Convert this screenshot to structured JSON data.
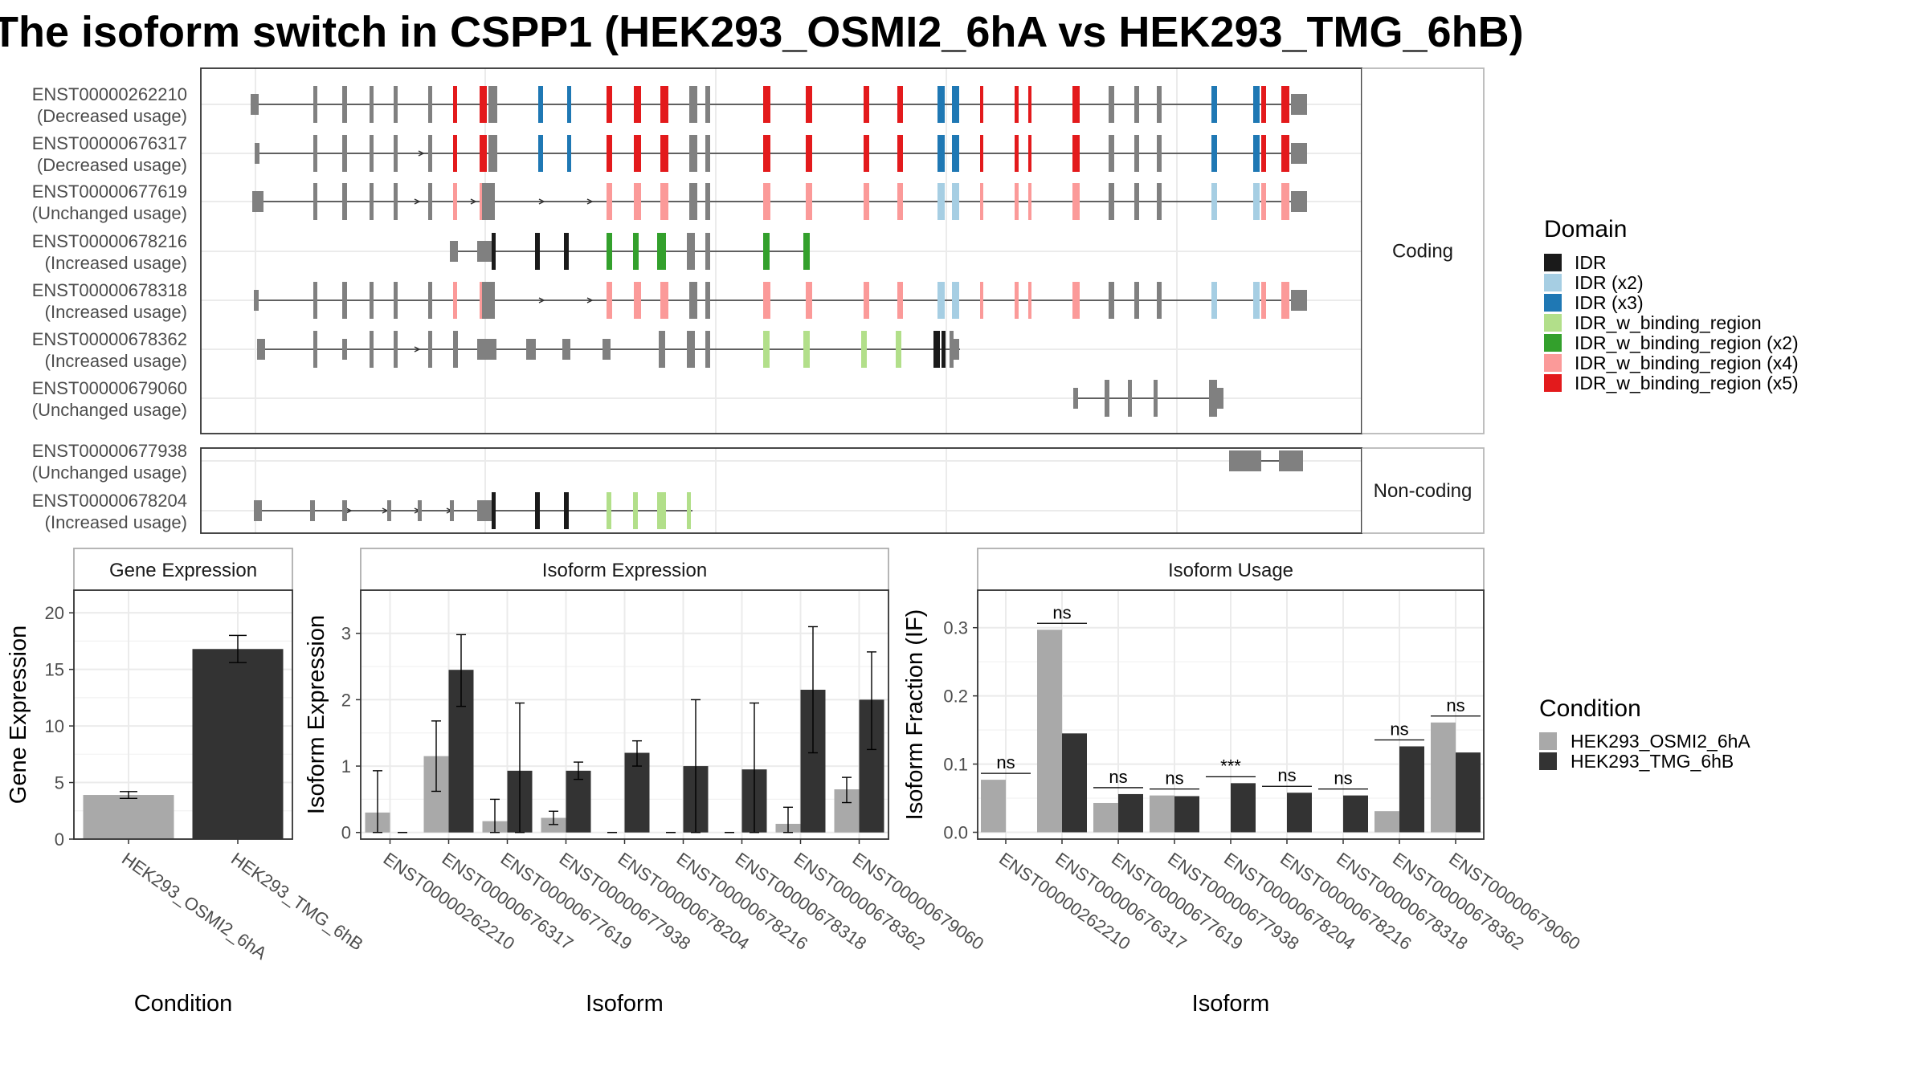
{
  "title": "The isoform switch in CSPP1 (HEK293_OSMI2_6hA vs HEK293_TMG_6hB)",
  "colors": {
    "IDR": "#1a1a1a",
    "IDR (x2)": "#a6cee3",
    "IDR (x3)": "#1f78b4",
    "IDR_w_binding_region": "#b2df8a",
    "IDR_w_binding_region (x2)": "#33a02c",
    "IDR_w_binding_region (x4)": "#fb9a99",
    "IDR_w_binding_region (x5)": "#e31a1c",
    "exon": "#808080",
    "condition_a": "#a9a9a9",
    "condition_b": "#333333"
  },
  "structure": {
    "coding_strip": "Coding",
    "noncoding_strip": "Non-coding",
    "coding": [
      {
        "id": "ENST00000262210",
        "usage": "(Decreased usage)"
      },
      {
        "id": "ENST00000676317",
        "usage": "(Decreased usage)"
      },
      {
        "id": "ENST00000677619",
        "usage": "(Unchanged usage)"
      },
      {
        "id": "ENST00000678216",
        "usage": "(Increased usage)"
      },
      {
        "id": "ENST00000678318",
        "usage": "(Increased usage)"
      },
      {
        "id": "ENST00000678362",
        "usage": "(Increased usage)"
      },
      {
        "id": "ENST00000679060",
        "usage": "(Unchanged usage)"
      }
    ],
    "noncoding": [
      {
        "id": "ENST00000677938",
        "usage": "(Unchanged usage)"
      },
      {
        "id": "ENST00000678204",
        "usage": "(Increased usage)"
      }
    ]
  },
  "legend_domain": {
    "title": "Domain",
    "items": [
      "IDR",
      "IDR (x2)",
      "IDR (x3)",
      "IDR_w_binding_region",
      "IDR_w_binding_region (x2)",
      "IDR_w_binding_region (x4)",
      "IDR_w_binding_region (x5)"
    ]
  },
  "legend_condition": {
    "title": "Condition",
    "items": [
      "HEK293_OSMI2_6hA",
      "HEK293_TMG_6hB"
    ]
  },
  "chart_data": [
    {
      "type": "bar",
      "title": "Gene Expression",
      "xlabel": "Condition",
      "ylabel": "Gene Expression",
      "categories": [
        "HEK293_OSMI2_6hA",
        "HEK293_TMG_6hB"
      ],
      "values": [
        3.9,
        16.8
      ],
      "errors": [
        [
          3.6,
          4.2
        ],
        [
          15.6,
          18.0
        ]
      ],
      "ylim": [
        0,
        22
      ],
      "yticks": [
        0,
        5,
        10,
        15,
        20
      ]
    },
    {
      "type": "bar",
      "title": "Isoform Expression",
      "xlabel": "Isoform",
      "ylabel": "Isoform Expression",
      "categories": [
        "ENST00000262210",
        "ENST00000676317",
        "ENST00000677619",
        "ENST00000677938",
        "ENST00000678204",
        "ENST00000678216",
        "ENST00000678318",
        "ENST00000678362",
        "ENST00000679060"
      ],
      "series": [
        {
          "name": "HEK293_OSMI2_6hA",
          "values": [
            0.3,
            1.15,
            0.17,
            0.22,
            0,
            0,
            0,
            0.13,
            0.65
          ],
          "errors": [
            [
              0,
              0.93
            ],
            [
              0.62,
              1.68
            ],
            [
              0,
              0.5
            ],
            [
              0.12,
              0.32
            ],
            [
              0,
              0
            ],
            [
              0,
              0
            ],
            [
              0,
              0
            ],
            [
              0,
              0.38
            ],
            [
              0.45,
              0.83
            ]
          ]
        },
        {
          "name": "HEK293_TMG_6hB",
          "values": [
            0,
            2.45,
            0.93,
            0.93,
            1.2,
            1.0,
            0.95,
            2.15,
            2.0
          ],
          "errors": [
            [
              0,
              0
            ],
            [
              1.9,
              2.98
            ],
            [
              0,
              1.95
            ],
            [
              0.8,
              1.06
            ],
            [
              1.0,
              1.38
            ],
            [
              0,
              2.0
            ],
            [
              0,
              1.95
            ],
            [
              1.2,
              3.1
            ],
            [
              1.25,
              2.72
            ]
          ]
        }
      ],
      "ylim": [
        -0.1,
        3.65
      ],
      "yticks": [
        0,
        1,
        2,
        3
      ]
    },
    {
      "type": "bar",
      "title": "Isoform Usage",
      "xlabel": "Isoform",
      "ylabel": "Isoform Fraction (IF)",
      "categories": [
        "ENST00000262210",
        "ENST00000676317",
        "ENST00000677619",
        "ENST00000677938",
        "ENST00000678204",
        "ENST00000678216",
        "ENST00000678318",
        "ENST00000678362",
        "ENST00000679060"
      ],
      "series": [
        {
          "name": "HEK293_OSMI2_6hA",
          "values": [
            0.077,
            0.297,
            0.043,
            0.054,
            0,
            0,
            0,
            0.031,
            0.161
          ]
        },
        {
          "name": "HEK293_TMG_6hB",
          "values": [
            0,
            0.145,
            0.056,
            0.053,
            0.072,
            0.058,
            0.054,
            0.126,
            0.117
          ]
        }
      ],
      "significance": [
        "ns",
        "ns",
        "ns",
        "ns",
        "***",
        "ns",
        "ns",
        "ns",
        "ns"
      ],
      "ylim": [
        -0.01,
        0.355
      ],
      "yticks": [
        0.0,
        0.1,
        0.2,
        0.3
      ]
    }
  ]
}
